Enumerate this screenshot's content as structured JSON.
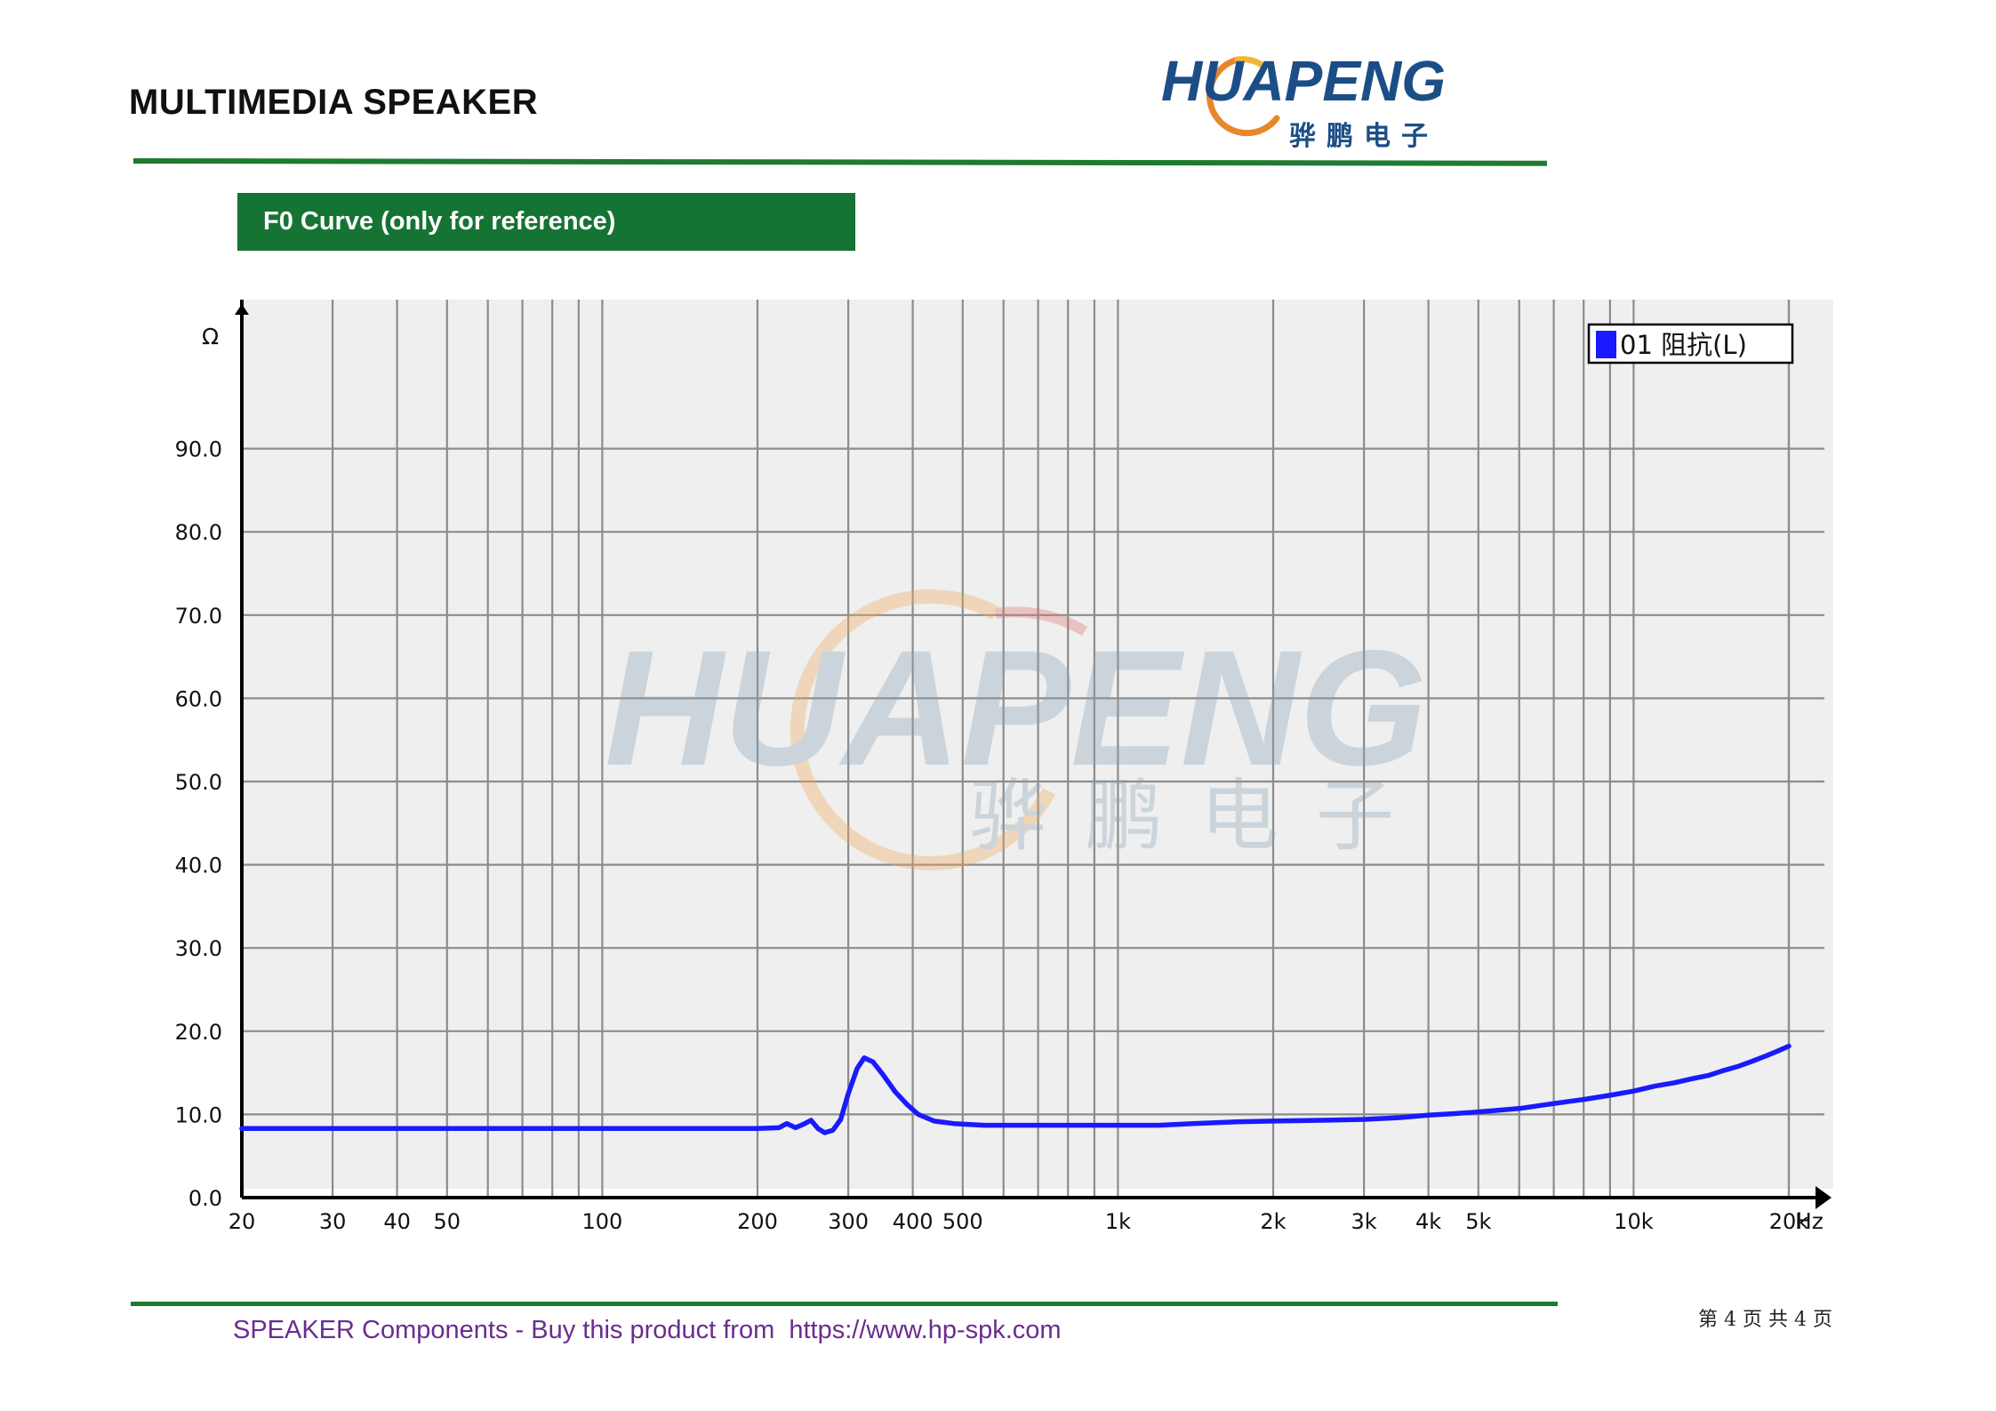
{
  "header": {
    "title": "MULTIMEDIA SPEAKER",
    "logo_text": "HUAPENG",
    "logo_subtext": "骅鹏电子"
  },
  "section": {
    "title": "F0 Curve (only for reference)"
  },
  "watermark": {
    "text": "HUAPENG",
    "subtext": "骅鹏电子"
  },
  "footer": {
    "text": "SPEAKER Components - Buy this product from  https://www.hp-spk.com",
    "page": "第 4 页 共 4 页"
  },
  "colors": {
    "accent_green": "#1f7a30",
    "banner_green": "#157334",
    "curve_blue": "#1a1aff",
    "footer_purple": "#6a2d8f",
    "plot_bg": "#efefef",
    "grid": "#8c8c8c"
  },
  "chart_data": {
    "type": "line",
    "title": "",
    "xlabel": "Hz",
    "ylabel": "Ω",
    "x_scale": "log",
    "xlim": [
      20,
      20000
    ],
    "ylim": [
      0,
      105
    ],
    "grid": true,
    "legend_position": "top-right",
    "x_ticks": [
      {
        "value": 20,
        "label": "20"
      },
      {
        "value": 30,
        "label": "30"
      },
      {
        "value": 40,
        "label": "40"
      },
      {
        "value": 50,
        "label": "50"
      },
      {
        "value": 100,
        "label": "100"
      },
      {
        "value": 200,
        "label": "200"
      },
      {
        "value": 300,
        "label": "300"
      },
      {
        "value": 400,
        "label": "400"
      },
      {
        "value": 500,
        "label": "500"
      },
      {
        "value": 1000,
        "label": "1k"
      },
      {
        "value": 2000,
        "label": "2k"
      },
      {
        "value": 3000,
        "label": "3k"
      },
      {
        "value": 4000,
        "label": "4k"
      },
      {
        "value": 5000,
        "label": "5k"
      },
      {
        "value": 10000,
        "label": "10k"
      },
      {
        "value": 20000,
        "label": "20k"
      }
    ],
    "y_ticks": [
      {
        "value": 0,
        "label": "0.0"
      },
      {
        "value": 10,
        "label": "10.0"
      },
      {
        "value": 20,
        "label": "20.0"
      },
      {
        "value": 30,
        "label": "30.0"
      },
      {
        "value": 40,
        "label": "40.0"
      },
      {
        "value": 50,
        "label": "50.0"
      },
      {
        "value": 60,
        "label": "60.0"
      },
      {
        "value": 70,
        "label": "70.0"
      },
      {
        "value": 80,
        "label": "80.0"
      },
      {
        "value": 90,
        "label": "90.0"
      }
    ],
    "series": [
      {
        "name": "01 阻抗(L)",
        "color": "#1a1aff",
        "points": [
          [
            20,
            8.3
          ],
          [
            50,
            8.3
          ],
          [
            100,
            8.3
          ],
          [
            150,
            8.3
          ],
          [
            200,
            8.3
          ],
          [
            220,
            8.4
          ],
          [
            228,
            8.9
          ],
          [
            237,
            8.4
          ],
          [
            247,
            8.9
          ],
          [
            254,
            9.3
          ],
          [
            262,
            8.3
          ],
          [
            270,
            7.8
          ],
          [
            280,
            8.1
          ],
          [
            290,
            9.4
          ],
          [
            300,
            12.5
          ],
          [
            312,
            15.5
          ],
          [
            322,
            16.8
          ],
          [
            335,
            16.3
          ],
          [
            350,
            14.8
          ],
          [
            370,
            12.7
          ],
          [
            390,
            11.2
          ],
          [
            410,
            10.0
          ],
          [
            440,
            9.2
          ],
          [
            480,
            8.9
          ],
          [
            550,
            8.7
          ],
          [
            700,
            8.7
          ],
          [
            900,
            8.7
          ],
          [
            1200,
            8.7
          ],
          [
            1400,
            8.9
          ],
          [
            1700,
            9.1
          ],
          [
            2000,
            9.2
          ],
          [
            2500,
            9.3
          ],
          [
            3000,
            9.4
          ],
          [
            3500,
            9.6
          ],
          [
            4000,
            9.9
          ],
          [
            4500,
            10.1
          ],
          [
            5000,
            10.3
          ],
          [
            6000,
            10.7
          ],
          [
            7000,
            11.3
          ],
          [
            8000,
            11.8
          ],
          [
            9000,
            12.3
          ],
          [
            10000,
            12.8
          ],
          [
            11000,
            13.4
          ],
          [
            12000,
            13.8
          ],
          [
            13000,
            14.3
          ],
          [
            14000,
            14.7
          ],
          [
            15000,
            15.3
          ],
          [
            16000,
            15.8
          ],
          [
            17000,
            16.4
          ],
          [
            18000,
            17.0
          ],
          [
            19000,
            17.6
          ],
          [
            20000,
            18.2
          ]
        ]
      }
    ]
  }
}
